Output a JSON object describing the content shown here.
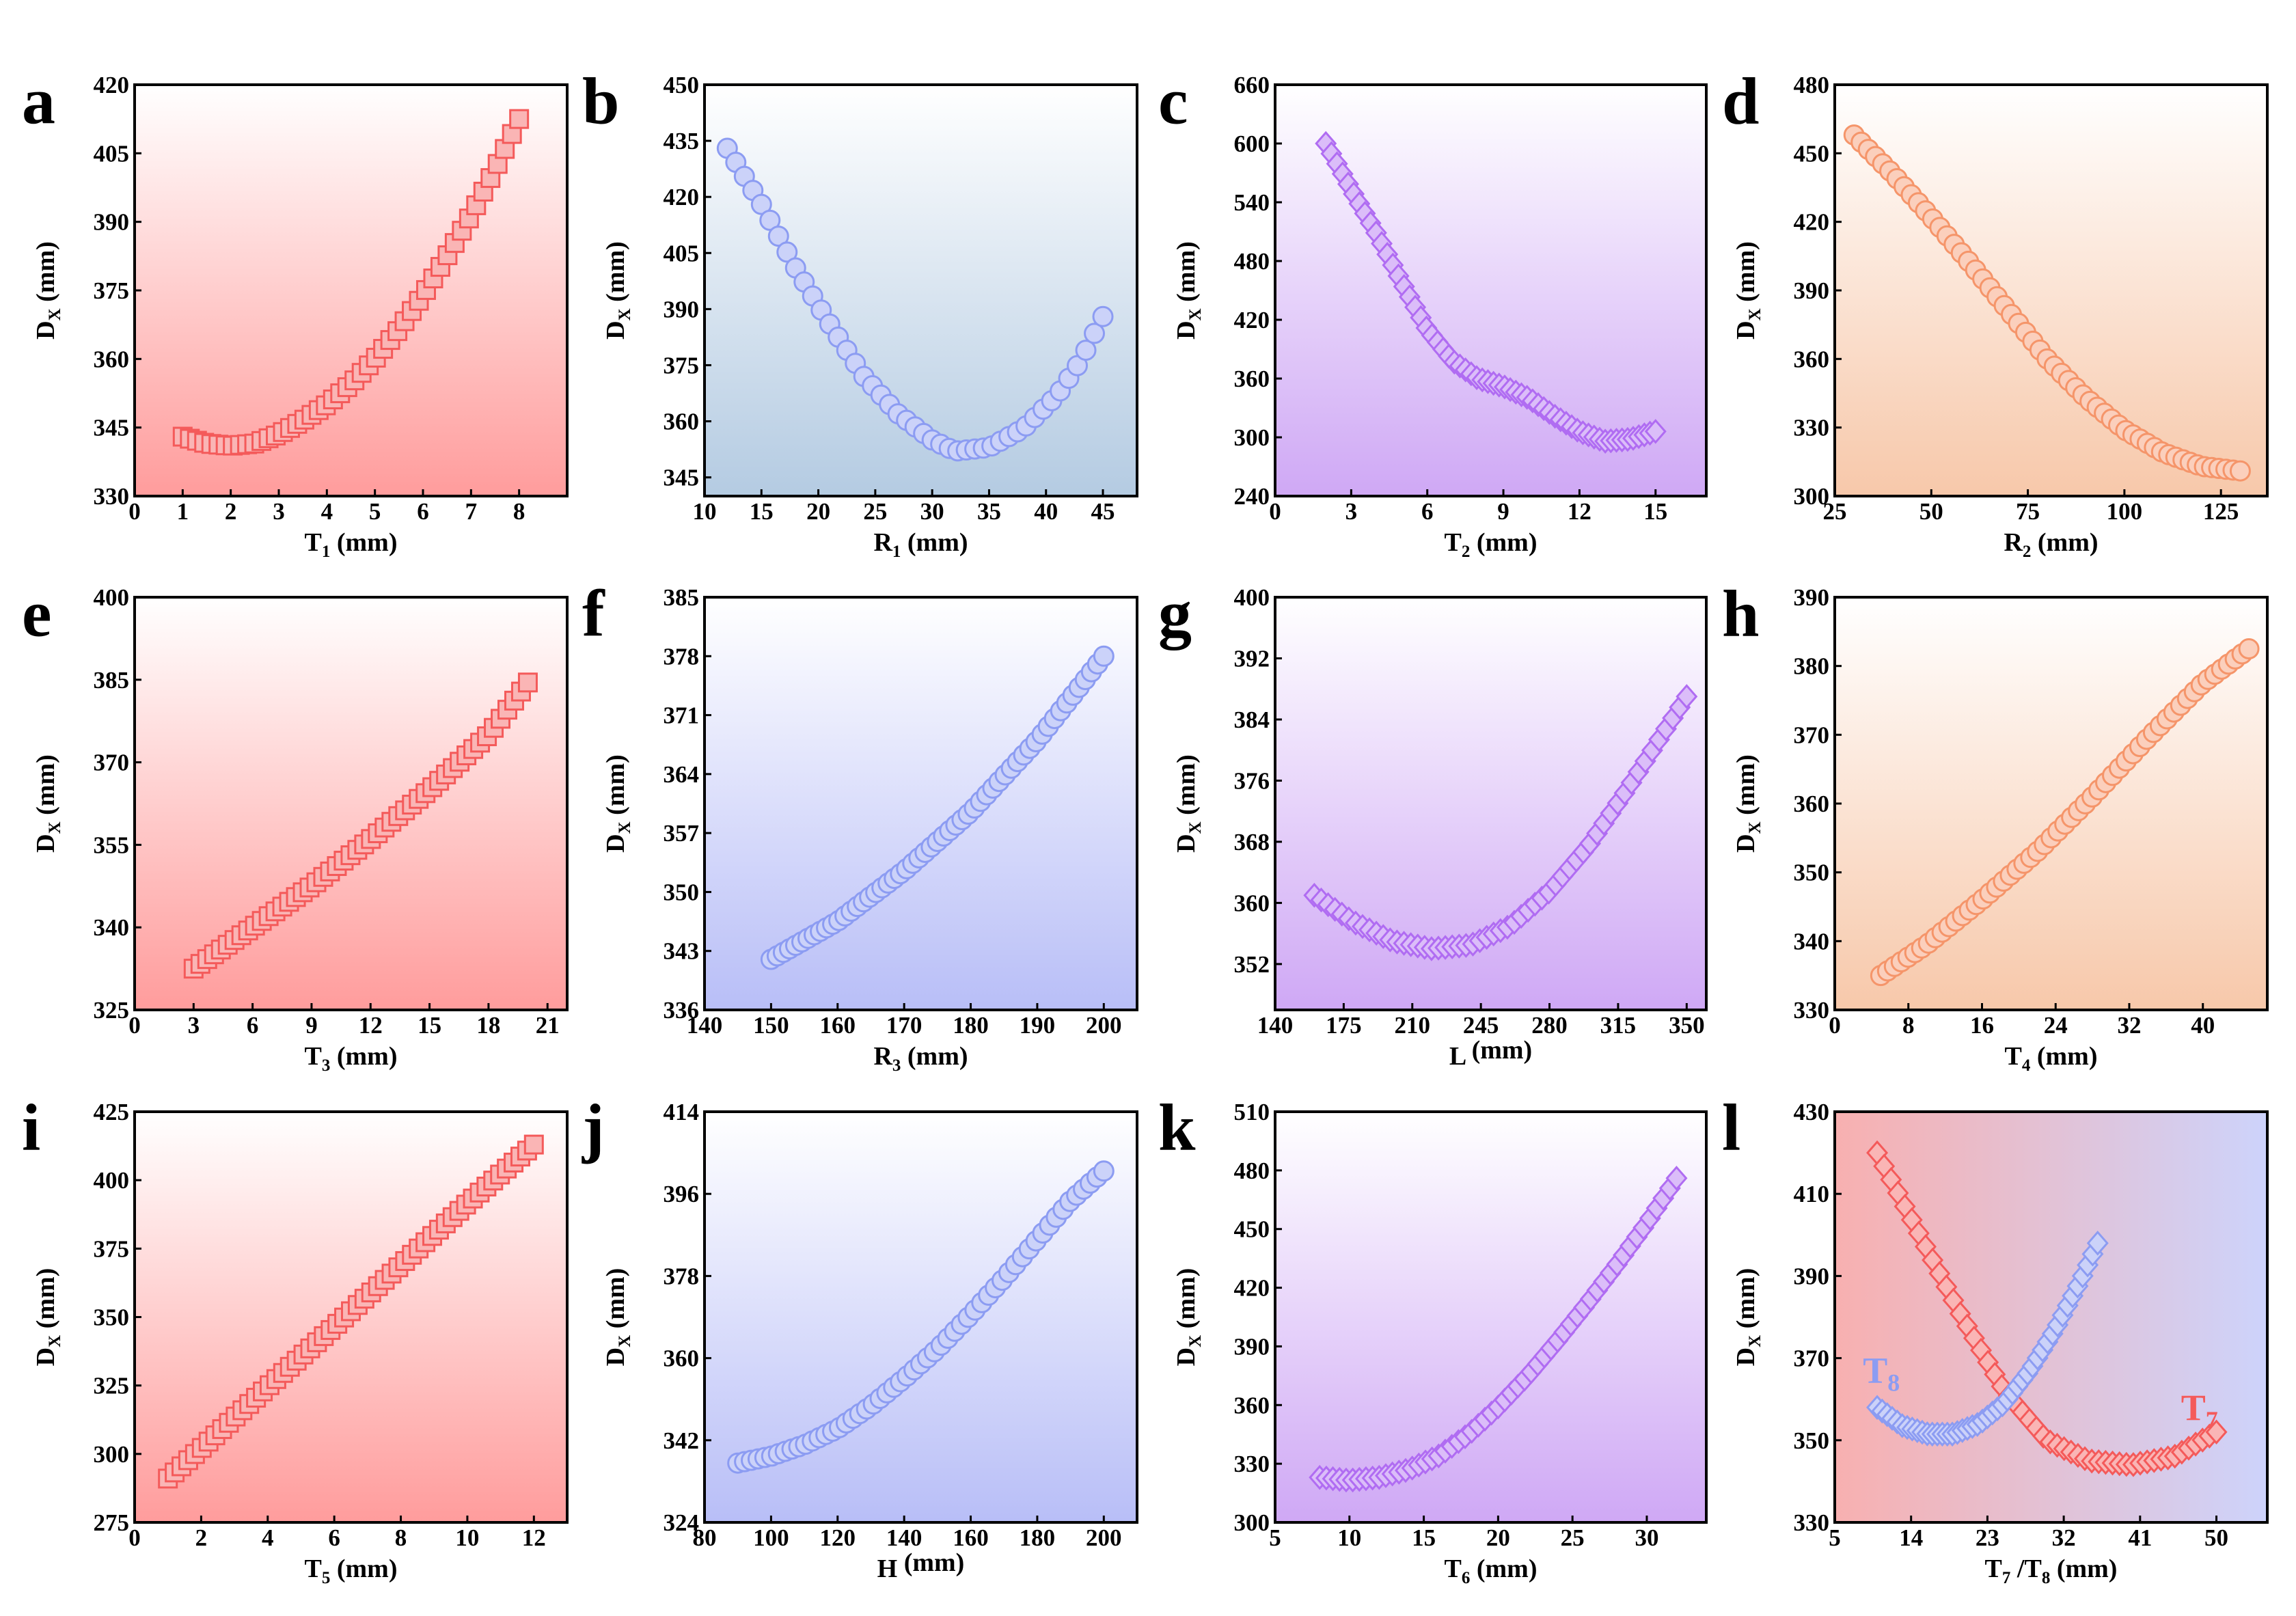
{
  "panels": [
    {
      "letter": "a",
      "gradient": [
        "#ffffff",
        "#ff9c9c"
      ],
      "color": "#f45a5a",
      "marker": "square",
      "xlabel": {
        "main": "T",
        "sub": "1",
        "unit": " (mm)"
      },
      "ylabel": "D_X (mm)",
      "xticks": [
        0,
        1,
        2,
        3,
        4,
        5,
        6,
        7,
        8
      ],
      "yticks": [
        330,
        345,
        360,
        375,
        390,
        405,
        420
      ],
      "xlim": [
        0,
        9
      ],
      "ylim": [
        330,
        420
      ],
      "series": [
        {
          "x": [
            1,
            1.5,
            2,
            2.5,
            3,
            3.5,
            4,
            4.5,
            5,
            5.5,
            6,
            6.5,
            7,
            7.5,
            8
          ],
          "y": [
            343,
            341.5,
            341,
            341.5,
            343.5,
            346.5,
            350,
            354.5,
            360,
            366.5,
            374,
            382.5,
            391.5,
            401.5,
            412.5
          ],
          "count": 48
        }
      ]
    },
    {
      "letter": "b",
      "gradient": [
        "#ffffff",
        "#b4cbe2"
      ],
      "color": "#8c9cf2",
      "marker": "circle",
      "xlabel": {
        "main": "R",
        "sub": "1",
        "unit": " (mm)"
      },
      "ylabel": "D_X (mm)",
      "xticks": [
        10,
        15,
        20,
        25,
        30,
        35,
        40,
        45
      ],
      "yticks": [
        345,
        360,
        375,
        390,
        405,
        420,
        435,
        450
      ],
      "xlim": [
        10,
        48
      ],
      "ylim": [
        340,
        450
      ],
      "series": [
        {
          "x": [
            12,
            15,
            18,
            21,
            24,
            27,
            30,
            32,
            35,
            38,
            41,
            43,
            45
          ],
          "y": [
            433,
            418,
            401,
            386,
            372,
            362,
            355,
            352,
            353,
            358,
            367,
            376,
            388
          ],
          "count": 45
        }
      ]
    },
    {
      "letter": "c",
      "gradient": [
        "#ffffff",
        "#cfa8f5"
      ],
      "color": "#b06cf2",
      "marker": "diamond",
      "xlabel": {
        "main": "T",
        "sub": "2",
        "unit": " (mm)"
      },
      "ylabel": "D_X (mm)",
      "xticks": [
        0,
        3,
        6,
        9,
        12,
        15
      ],
      "yticks": [
        240,
        300,
        360,
        420,
        480,
        540,
        600,
        660
      ],
      "xlim": [
        0,
        17
      ],
      "ylim": [
        240,
        660
      ],
      "series": [
        {
          "x": [
            2,
            3,
            4,
            5,
            6,
            7,
            8,
            9,
            10,
            11,
            12,
            13,
            14,
            15
          ],
          "y": [
            600,
            553,
            508,
            458,
            410,
            378,
            360,
            352,
            340,
            322,
            306,
            296,
            298,
            306
          ],
          "count": 60
        }
      ]
    },
    {
      "letter": "d",
      "gradient": [
        "#ffffff",
        "#f7c8aa"
      ],
      "color": "#f5956a",
      "marker": "circle",
      "xlabel": {
        "main": "R",
        "sub": "2",
        "unit": " (mm)"
      },
      "ylabel": "D_X (mm)",
      "xticks": [
        25,
        50,
        75,
        100,
        125
      ],
      "yticks": [
        300,
        330,
        360,
        390,
        420,
        450,
        480
      ],
      "xlim": [
        25,
        137
      ],
      "ylim": [
        300,
        480
      ],
      "series": [
        {
          "x": [
            30,
            40,
            50,
            60,
            70,
            80,
            90,
            100,
            110,
            120,
            130
          ],
          "y": [
            458,
            441,
            422,
            402,
            381,
            360,
            343,
            329,
            319,
            313,
            311
          ],
          "count": 55
        }
      ]
    },
    {
      "letter": "e",
      "gradient": [
        "#ffffff",
        "#ff9c9c"
      ],
      "color": "#f45a5a",
      "marker": "square",
      "xlabel": {
        "main": "T",
        "sub": "3",
        "unit": " (mm)"
      },
      "ylabel": "D_X (mm)",
      "xticks": [
        0,
        3,
        6,
        9,
        12,
        15,
        18,
        21
      ],
      "yticks": [
        325,
        340,
        355,
        370,
        385,
        400
      ],
      "xlim": [
        0,
        22
      ],
      "ylim": [
        325,
        400
      ],
      "series": [
        {
          "x": [
            3,
            6,
            9,
            12,
            15,
            18,
            20
          ],
          "y": [
            332.5,
            340,
            347.5,
            356,
            365,
            375,
            384.5
          ],
          "count": 50
        }
      ]
    },
    {
      "letter": "f",
      "gradient": [
        "#ffffff",
        "#b8bef7"
      ],
      "color": "#8c9cf2",
      "marker": "circle",
      "xlabel": {
        "main": "R",
        "sub": "3",
        "unit": " (mm)"
      },
      "ylabel": "D_X (mm)",
      "xticks": [
        140,
        150,
        160,
        170,
        180,
        190,
        200
      ],
      "yticks": [
        336,
        343,
        350,
        357,
        364,
        371,
        378,
        385
      ],
      "xlim": [
        140,
        205
      ],
      "ylim": [
        336,
        385
      ],
      "series": [
        {
          "x": [
            150,
            160,
            170,
            180,
            190,
            200
          ],
          "y": [
            342,
            346.5,
            352.5,
            359.5,
            368,
            378
          ],
          "count": 55
        }
      ]
    },
    {
      "letter": "g",
      "gradient": [
        "#ffffff",
        "#cfa8f5"
      ],
      "color": "#b06cf2",
      "marker": "diamond",
      "xlabel": {
        "main": "L",
        "sub": "",
        "unit": " (mm)"
      },
      "ylabel": "D_X (mm)",
      "xticks": [
        140,
        175,
        210,
        245,
        280,
        315,
        350
      ],
      "yticks": [
        352,
        360,
        368,
        376,
        384,
        392,
        400
      ],
      "xlim": [
        140,
        360
      ],
      "ylim": [
        346,
        400
      ],
      "series": [
        {
          "x": [
            160,
            180,
            200,
            220,
            240,
            260,
            280,
            300,
            320,
            340,
            350
          ],
          "y": [
            361,
            357.5,
            355,
            354,
            354.5,
            357,
            361.5,
            367.5,
            375,
            383,
            387
          ],
          "count": 55
        }
      ]
    },
    {
      "letter": "h",
      "gradient": [
        "#ffffff",
        "#f7c8aa"
      ],
      "color": "#f5956a",
      "marker": "circle",
      "xlabel": {
        "main": "T",
        "sub": "4",
        "unit": " (mm)"
      },
      "ylabel": "D_X (mm)",
      "xticks": [
        0,
        8,
        16,
        24,
        32,
        40
      ],
      "yticks": [
        330,
        340,
        350,
        360,
        370,
        380,
        390
      ],
      "xlim": [
        0,
        47
      ],
      "ylim": [
        330,
        390
      ],
      "series": [
        {
          "x": [
            5,
            10,
            16,
            22,
            28,
            34,
            40,
            45
          ],
          "y": [
            335,
            339.5,
            346,
            353,
            361,
            369.5,
            377.5,
            382.5
          ],
          "count": 55
        }
      ]
    },
    {
      "letter": "i",
      "gradient": [
        "#ffffff",
        "#ff9c9c"
      ],
      "color": "#f45a5a",
      "marker": "square",
      "xlabel": {
        "main": "T",
        "sub": "5",
        "unit": " (mm)"
      },
      "ylabel": "D_X (mm)",
      "xticks": [
        0,
        2,
        4,
        6,
        8,
        10,
        12
      ],
      "yticks": [
        275,
        300,
        325,
        350,
        375,
        400,
        425
      ],
      "xlim": [
        0,
        13
      ],
      "ylim": [
        275,
        425
      ],
      "series": [
        {
          "x": [
            1,
            2,
            4,
            6,
            8,
            10,
            12
          ],
          "y": [
            291,
            302,
            324.5,
            346.5,
            369,
            391.5,
            413
          ],
          "count": 55
        }
      ]
    },
    {
      "letter": "j",
      "gradient": [
        "#ffffff",
        "#b8bef7"
      ],
      "color": "#8c9cf2",
      "marker": "circle",
      "xlabel": {
        "main": "H",
        "sub": "",
        "unit": " (mm)"
      },
      "ylabel": "D_X (mm)",
      "xticks": [
        80,
        100,
        120,
        140,
        160,
        180,
        200
      ],
      "yticks": [
        324,
        342,
        360,
        378,
        396,
        414
      ],
      "xlim": [
        80,
        210
      ],
      "ylim": [
        324,
        414
      ],
      "series": [
        {
          "x": [
            90,
            100,
            110,
            120,
            130,
            140,
            150,
            160,
            170,
            180,
            190,
            200
          ],
          "y": [
            337,
            338.5,
            341,
            344.5,
            349.5,
            355.5,
            362,
            369.5,
            377.5,
            386,
            394.5,
            401
          ],
          "count": 55
        }
      ]
    },
    {
      "letter": "k",
      "gradient": [
        "#ffffff",
        "#cfa8f5"
      ],
      "color": "#b06cf2",
      "marker": "diamond",
      "xlabel": {
        "main": "T",
        "sub": "6",
        "unit": " (mm)"
      },
      "ylabel": "D_X (mm)",
      "xticks": [
        5,
        10,
        15,
        20,
        25,
        30
      ],
      "yticks": [
        300,
        330,
        360,
        390,
        420,
        450,
        480,
        510
      ],
      "xlim": [
        5,
        34
      ],
      "ylim": [
        300,
        510
      ],
      "series": [
        {
          "x": [
            8,
            10,
            12,
            14,
            16,
            18,
            20,
            22,
            24,
            26,
            28,
            30,
            32
          ],
          "y": [
            323,
            321.5,
            323,
            327,
            334,
            345,
            359,
            375,
            393,
            412,
            432,
            453,
            476
          ],
          "count": 55
        }
      ]
    },
    {
      "letter": "l",
      "gradient": [
        "#f8b0b0",
        "#cdd3fb"
      ],
      "gradientDir": "horizontal",
      "marker": "diamond",
      "xlabel": {
        "main": "T",
        "sub": "7",
        "unit": " /",
        "main2": "T",
        "sub2": "8",
        "unit2": " (mm)"
      },
      "ylabel": "D_X (mm)",
      "xticks": [
        5,
        14,
        23,
        32,
        41,
        50
      ],
      "yticks": [
        330,
        350,
        370,
        390,
        410,
        430
      ],
      "xlim": [
        5,
        56
      ],
      "ylim": [
        330,
        430
      ],
      "series": [
        {
          "name": "T7",
          "sub": "7",
          "color": "#f45a5a",
          "x": [
            10,
            15,
            20,
            25,
            30,
            35,
            40,
            45,
            50
          ],
          "y": [
            420,
            400,
            380,
            362,
            350,
            345,
            344,
            346,
            352
          ],
          "count": 50
        },
        {
          "name": "T8",
          "sub": "8",
          "color": "#8c9cf2",
          "x": [
            10,
            13,
            16,
            19,
            22,
            25,
            28,
            31,
            34,
            36
          ],
          "y": [
            358,
            353.5,
            351.5,
            351.5,
            354,
            359,
            367,
            377,
            389,
            398
          ],
          "count": 45
        }
      ]
    }
  ]
}
